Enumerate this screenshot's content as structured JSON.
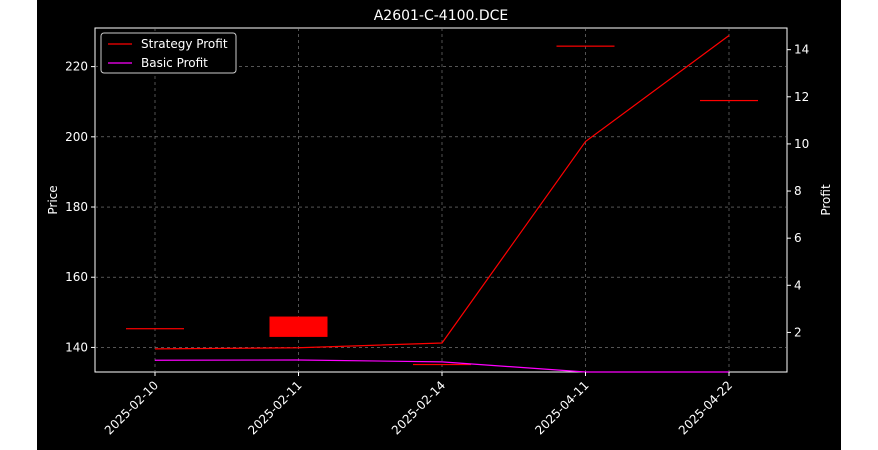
{
  "chart_data": {
    "type": "line",
    "title": "A2601-C-4100.DCE",
    "xlabel": "",
    "ylabel": "Price",
    "y2label": "Profit",
    "categories": [
      "2025-02-10",
      "2025-02-11",
      "2025-02-14",
      "2025-04-11",
      "2025-04-22"
    ],
    "ylim": [
      133,
      231
    ],
    "y2lim": [
      0.32,
      14.92
    ],
    "yticks": [
      140,
      160,
      180,
      200,
      220
    ],
    "y2ticks": [
      2,
      4,
      6,
      8,
      10,
      12,
      14
    ],
    "grid": true,
    "legend_position": "top-left",
    "candles": [
      {
        "x": "2025-02-10",
        "open": 145.5,
        "close": 145.5
      },
      {
        "x": "2025-02-11",
        "open": 148.8,
        "close": 143.0
      },
      {
        "x": "2025-02-14",
        "open": 135.3,
        "close": 135.3
      },
      {
        "x": "2025-04-11",
        "open": 226.0,
        "close": 226.0
      },
      {
        "x": "2025-04-22",
        "open": 210.5,
        "close": 210.5
      }
    ],
    "series": [
      {
        "name": "Strategy Profit",
        "axis": "right",
        "color": "#ff0000",
        "values": [
          1.3,
          1.35,
          1.55,
          10.1,
          14.6
        ]
      },
      {
        "name": "Basic Profit",
        "axis": "right",
        "color": "#ff00ff",
        "values": [
          0.82,
          0.83,
          0.75,
          0.32,
          0.32
        ]
      }
    ],
    "candle_color": "#ff0000"
  }
}
